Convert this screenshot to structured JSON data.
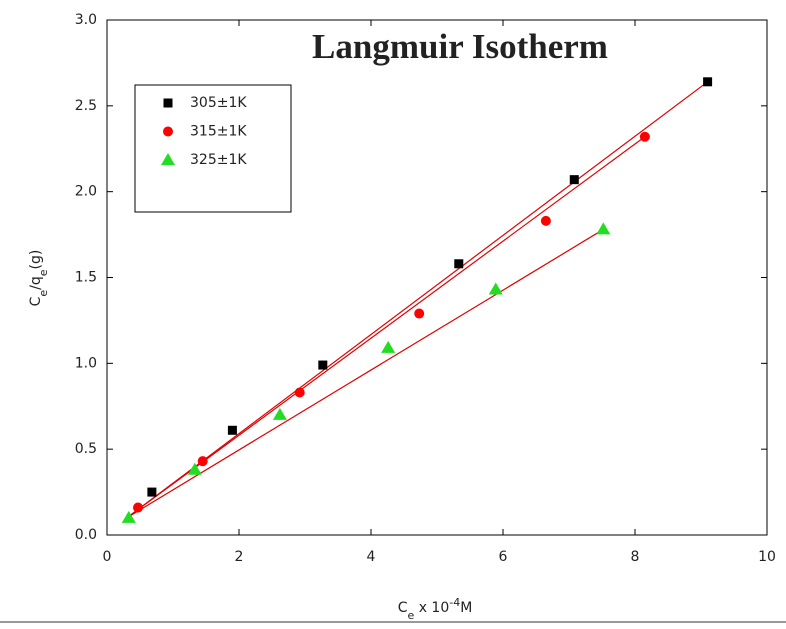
{
  "chart_data": {
    "type": "scatter",
    "title": "Langmuir Isotherm",
    "title_color": "#e00000",
    "ylabel": [
      "C",
      "e",
      "/q",
      "e",
      "(g)"
    ],
    "xlabel": [
      "C",
      "e",
      " x 10",
      "-4",
      "M"
    ],
    "xlim": [
      0,
      10
    ],
    "xticks": [
      0,
      2,
      4,
      6,
      8,
      10
    ],
    "ylim": [
      0,
      3
    ],
    "yticks": [
      {
        "value": 0,
        "label": "0.0"
      },
      {
        "value": 0.5,
        "label": "0.5"
      },
      {
        "value": 1,
        "label": "1.0"
      },
      {
        "value": 1.5,
        "label": "1.5"
      },
      {
        "value": 2,
        "label": "2.0"
      },
      {
        "value": 2.5,
        "label": "2.5"
      },
      {
        "value": 3,
        "label": "3.0"
      }
    ],
    "line_color": "#e00000",
    "legend": "upper left",
    "series": [
      {
        "name": "305±1K",
        "color": "#000000",
        "marker": "square",
        "x": [
          0.68,
          1.9,
          3.27,
          5.33,
          7.08,
          9.1
        ],
        "values": [
          0.25,
          0.61,
          0.99,
          1.58,
          2.07,
          2.64
        ],
        "fit_x": [
          0.3,
          9.1
        ],
        "fit_values": [
          0.1,
          2.64
        ]
      },
      {
        "name": "315±1K",
        "color": "#ff0000",
        "marker": "circle",
        "x": [
          0.47,
          1.45,
          2.92,
          4.73,
          6.65,
          8.15
        ],
        "values": [
          0.16,
          0.43,
          0.83,
          1.29,
          1.83,
          2.32
        ],
        "fit_x": [
          0.3,
          8.15
        ],
        "fit_values": [
          0.1,
          2.32
        ]
      },
      {
        "name": "325±1K",
        "color": "#22dd22",
        "marker": "triangle",
        "x": [
          0.33,
          1.33,
          2.62,
          4.26,
          5.89,
          7.52
        ],
        "values": [
          0.1,
          0.38,
          0.7,
          1.09,
          1.43,
          1.78
        ],
        "fit_x": [
          0.3,
          7.52
        ],
        "fit_values": [
          0.1,
          1.78
        ]
      }
    ]
  }
}
